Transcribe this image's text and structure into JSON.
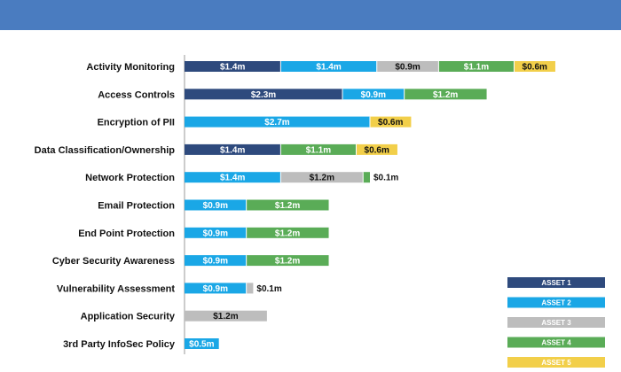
{
  "chart_data": {
    "type": "bar",
    "orientation": "horizontal",
    "stacked": true,
    "title": "",
    "xlabel": "",
    "ylabel": "",
    "unit": "$m",
    "xlim": [
      0,
      5.8
    ],
    "categories": [
      "Activity Monitoring",
      "Access Controls",
      "Encryption of PII",
      "Data Classification/Ownership",
      "Network Protection",
      "Email Protection",
      "End Point Protection",
      "Cyber Security Awareness",
      "Vulnerability Assessment",
      "Application Security",
      "3rd Party InfoSec Policy"
    ],
    "series": [
      {
        "name": "ASSET 1",
        "color": "#2e4a7d",
        "values": [
          1.4,
          2.3,
          0,
          1.4,
          0,
          0,
          0,
          0,
          0,
          0,
          0
        ],
        "labels": [
          "$1.4m",
          "$2.3m",
          "",
          "$1.4m",
          "",
          "",
          "",
          "",
          "",
          "",
          ""
        ]
      },
      {
        "name": "ASSET 2",
        "color": "#1aa7e6",
        "values": [
          1.4,
          0.9,
          2.7,
          0,
          1.4,
          0.9,
          0.9,
          0.9,
          0.9,
          0,
          0.5
        ],
        "labels": [
          "$1.4m",
          "$0.9m",
          "$2.7m",
          "",
          "$1.4m",
          "$0.9m",
          "$0.9m",
          "$0.9m",
          "$0.9m",
          "",
          "$0.5m"
        ]
      },
      {
        "name": "ASSET 3",
        "color": "#bdbdbd",
        "values": [
          0.9,
          0,
          0,
          0,
          1.2,
          0,
          0,
          0,
          0.1,
          1.2,
          0
        ],
        "labels": [
          "$0.9m",
          "",
          "",
          "",
          "$1.2m",
          "",
          "",
          "",
          "$0.1m",
          "$1.2m",
          ""
        ]
      },
      {
        "name": "ASSET 4",
        "color": "#5aac57",
        "values": [
          1.1,
          1.2,
          0,
          1.1,
          0.1,
          1.2,
          1.2,
          1.2,
          0,
          0,
          0
        ],
        "labels": [
          "$1.1m",
          "$1.2m",
          "",
          "$1.1m",
          "$0.1m",
          "$1.2m",
          "$1.2m",
          "$1.2m",
          "",
          "",
          ""
        ]
      },
      {
        "name": "ASSET 5",
        "color": "#f2cf4a",
        "values": [
          0.6,
          0,
          0.6,
          0.6,
          0,
          0,
          0,
          0,
          0,
          0,
          0
        ],
        "labels": [
          "$0.6m",
          "",
          "$0.6m",
          "$0.6m",
          "",
          "",
          "",
          "",
          "",
          "",
          ""
        ]
      }
    ],
    "legend_position": "bottom-right"
  }
}
